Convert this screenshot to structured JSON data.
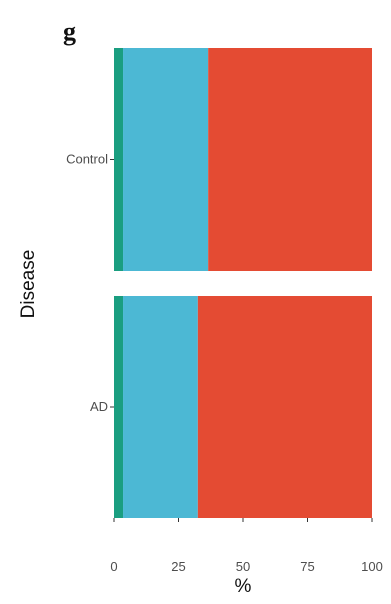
{
  "panel_label": "g",
  "chart_data": {
    "type": "bar",
    "orientation": "horizontal",
    "stacked": true,
    "categories": [
      "Control",
      "AD"
    ],
    "series": [
      {
        "color": "#1a9e80",
        "values": [
          3.5,
          3.5
        ]
      },
      {
        "color": "#4cb8d4",
        "values": [
          33,
          29
        ]
      },
      {
        "color": "#e44b33",
        "values": [
          63.5,
          67.5
        ]
      }
    ],
    "xlabel": "%",
    "ylabel": "Disease",
    "xlim": [
      0,
      100
    ],
    "xticks": [
      "0",
      "25",
      "50",
      "75",
      "100"
    ],
    "grid": false,
    "legend": "none"
  }
}
